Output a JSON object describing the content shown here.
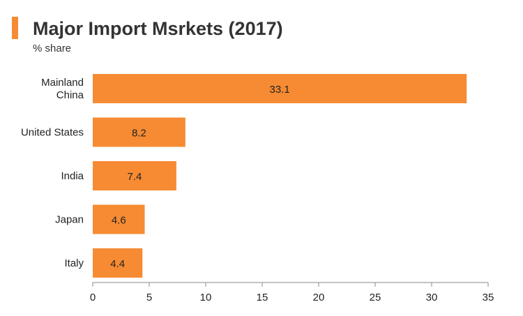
{
  "accent_color": "#f68b33",
  "chart_data": {
    "type": "bar",
    "orientation": "horizontal",
    "title": "Major Import Msrkets (2017)",
    "subtitle": "% share",
    "categories": [
      "Mainland China",
      "United States",
      "India",
      "Japan",
      "Italy"
    ],
    "category_lines": [
      [
        "Mainland",
        "China"
      ],
      [
        "United States"
      ],
      [
        "India"
      ],
      [
        "Japan"
      ],
      [
        "Italy"
      ]
    ],
    "values": [
      33.1,
      8.2,
      7.4,
      4.6,
      4.4
    ],
    "data_labels": [
      "33.1",
      "8.2",
      "7.4",
      "4.6",
      "4.4"
    ],
    "xlim": [
      0,
      35
    ],
    "xticks": [
      0,
      5,
      10,
      15,
      20,
      25,
      30,
      35
    ],
    "xlabel": "",
    "ylabel": "",
    "bar_color": "#f68b33",
    "grid": false,
    "legend": "none"
  }
}
